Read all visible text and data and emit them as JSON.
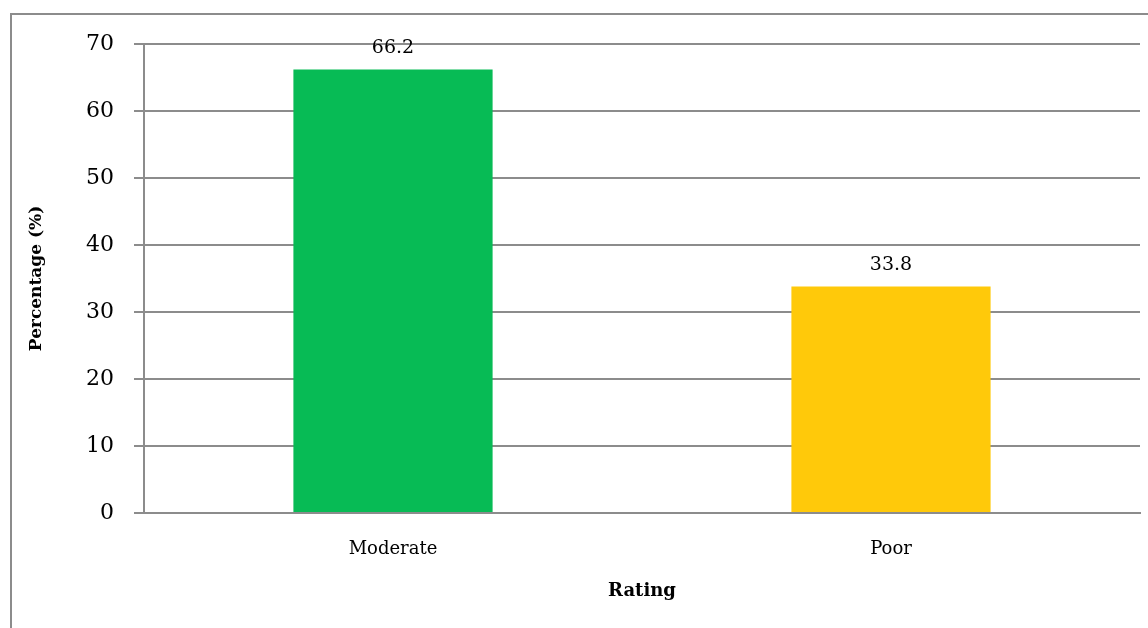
{
  "chart_data": {
    "type": "bar",
    "xlabel": "Rating",
    "ylabel": "Percentage (%)",
    "categories": [
      "Moderate",
      "Poor"
    ],
    "values": [
      66.2,
      33.8
    ],
    "colors": [
      "#07bb55",
      "#ffc90a"
    ],
    "ylim": [
      0,
      70
    ],
    "yticks": [
      0,
      10,
      20,
      30,
      40,
      50,
      60,
      70
    ],
    "grid": "y",
    "data_labels": true
  }
}
